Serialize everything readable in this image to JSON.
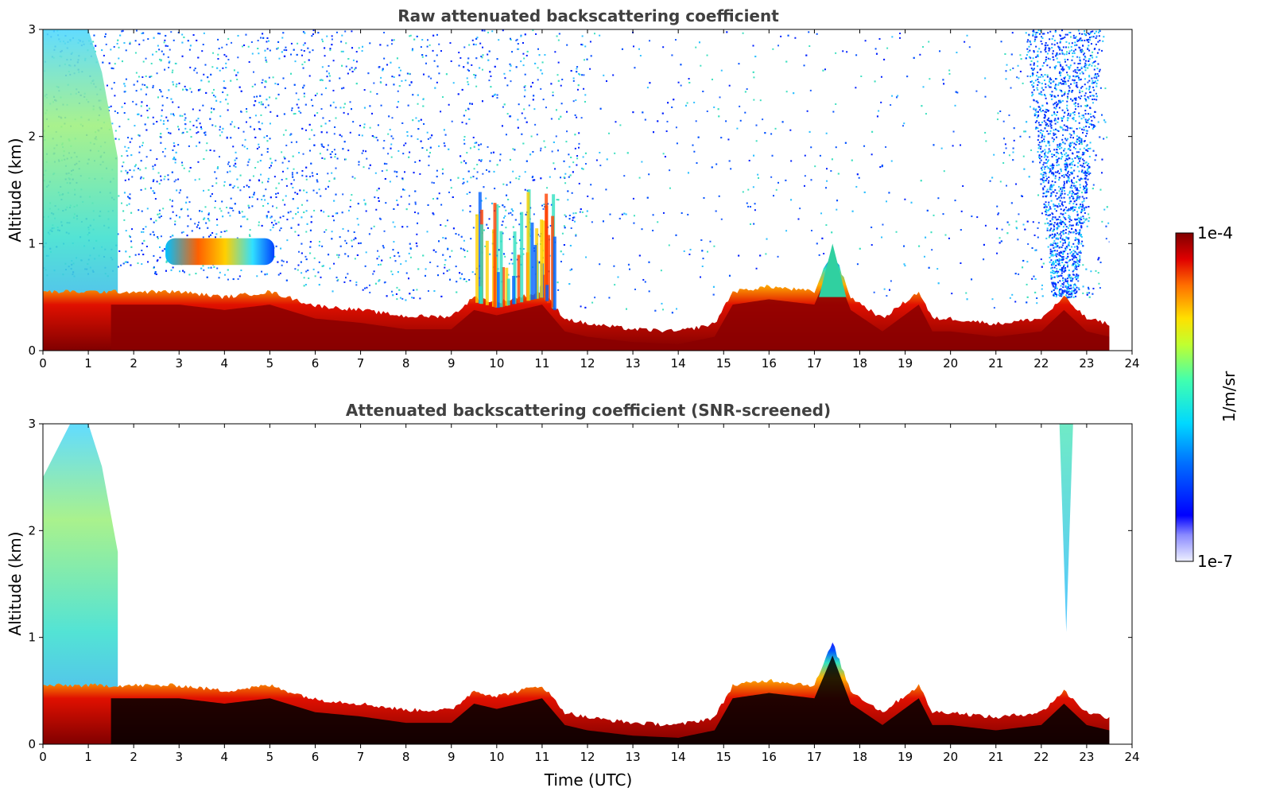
{
  "chart_data": [
    {
      "type": "heatmap",
      "title": "Raw attenuated backscattering coefficient",
      "xlabel": "",
      "ylabel": "Altitude (km)",
      "xlim": [
        0,
        24
      ],
      "ylim": [
        0,
        3
      ],
      "xticks": [
        "0",
        "1",
        "2",
        "3",
        "4",
        "5",
        "6",
        "7",
        "8",
        "9",
        "10",
        "11",
        "12",
        "13",
        "14",
        "15",
        "16",
        "17",
        "18",
        "19",
        "20",
        "21",
        "22",
        "23",
        "24"
      ],
      "yticks": [
        "0",
        "1",
        "2",
        "3"
      ],
      "data_end_time": 23.5,
      "boundary_layer_top_km": [
        [
          0,
          0.55
        ],
        [
          1.5,
          0.55
        ],
        [
          2,
          0.55
        ],
        [
          3,
          0.55
        ],
        [
          4,
          0.5
        ],
        [
          5,
          0.55
        ],
        [
          6,
          0.42
        ],
        [
          7,
          0.38
        ],
        [
          8,
          0.32
        ],
        [
          9,
          0.32
        ],
        [
          9.5,
          0.5
        ],
        [
          10,
          0.45
        ],
        [
          11,
          0.55
        ],
        [
          11.5,
          0.3
        ],
        [
          12,
          0.25
        ],
        [
          13,
          0.2
        ],
        [
          14,
          0.18
        ],
        [
          14.8,
          0.25
        ],
        [
          15.2,
          0.55
        ],
        [
          16,
          0.6
        ],
        [
          17,
          0.55
        ],
        [
          17.4,
          0.95
        ],
        [
          17.8,
          0.5
        ],
        [
          18.5,
          0.3
        ],
        [
          19.3,
          0.55
        ],
        [
          19.6,
          0.3
        ],
        [
          20,
          0.3
        ],
        [
          21,
          0.25
        ],
        [
          22,
          0.3
        ],
        [
          22.5,
          0.5
        ],
        [
          23,
          0.3
        ],
        [
          23.5,
          0.25
        ]
      ],
      "features": [
        {
          "name": "elevated aerosol layer",
          "time": [
            2.7,
            5.1
          ],
          "altitude_km": [
            0.8,
            1.05
          ]
        },
        {
          "name": "convective plumes",
          "time": [
            9.5,
            11.3
          ],
          "altitude_km": [
            0.5,
            1.6
          ]
        },
        {
          "name": "convective peak",
          "time": [
            17.2,
            17.6
          ],
          "altitude_km": [
            0.5,
            1.0
          ]
        },
        {
          "name": "residual layer",
          "time": [
            0,
            1.6
          ],
          "altitude_km": [
            0,
            3
          ]
        },
        {
          "name": "noise column",
          "time": [
            21.8,
            23.2
          ],
          "altitude_km": [
            0.5,
            3
          ]
        }
      ]
    },
    {
      "type": "heatmap",
      "title": "Attenuated backscattering coefficient (SNR-screened)",
      "xlabel": "Time (UTC)",
      "ylabel": "Altitude (km)",
      "xlim": [
        0,
        24
      ],
      "ylim": [
        0,
        3
      ],
      "xticks": [
        "0",
        "1",
        "2",
        "3",
        "4",
        "5",
        "6",
        "7",
        "8",
        "9",
        "10",
        "11",
        "12",
        "13",
        "14",
        "15",
        "16",
        "17",
        "18",
        "19",
        "20",
        "21",
        "22",
        "23",
        "24"
      ],
      "yticks": [
        "0",
        "1",
        "2",
        "3"
      ],
      "data_end_time": 23.5,
      "features": [
        {
          "name": "screened plume",
          "time": [
            22.4,
            22.7
          ],
          "altitude_km": [
            1.05,
            3
          ]
        }
      ]
    }
  ],
  "colorbar": {
    "min_label": "1e-7",
    "max_label": "1e-4",
    "label": "1/m/sr",
    "colormap": "jet",
    "scale": "log"
  }
}
